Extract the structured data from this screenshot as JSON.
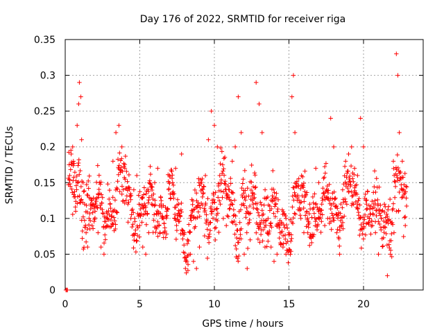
{
  "chart_data": {
    "type": "scatter",
    "title": "Day 176 of 2022, SRMTID for receiver riga",
    "xlabel": "GPS time / hours",
    "ylabel": "SRMTID / TECUs",
    "xlim": [
      0,
      24
    ],
    "ylim": [
      0,
      0.35
    ],
    "xticks": [
      0,
      5,
      10,
      15,
      20
    ],
    "yticks": [
      0,
      0.05,
      0.1,
      0.15,
      0.2,
      0.25,
      0.3,
      0.35
    ],
    "xtick_labels": [
      "0",
      "5",
      "10",
      "15",
      "20"
    ],
    "ytick_labels": [
      "0",
      "0.05",
      "0.1",
      "0.15",
      "0.2",
      "0.25",
      "0.3",
      "0.35"
    ],
    "grid": true,
    "marker": "+",
    "color": "#ff0000",
    "series": [
      {
        "points": [
          [
            0.05,
            0.0
          ],
          [
            0.1,
            0.0
          ],
          [
            0.15,
            0.0
          ],
          [
            0.3,
            0.16
          ],
          [
            0.4,
            0.19
          ],
          [
            0.5,
            0.2
          ],
          [
            0.55,
            0.18
          ],
          [
            0.6,
            0.13
          ],
          [
            0.7,
            0.11
          ],
          [
            0.8,
            0.23
          ],
          [
            0.9,
            0.26
          ],
          [
            0.95,
            0.29
          ],
          [
            1.05,
            0.27
          ],
          [
            1.1,
            0.21
          ],
          [
            1.2,
            0.15
          ],
          [
            1.3,
            0.12
          ],
          [
            1.4,
            0.08
          ],
          [
            1.5,
            0.06
          ],
          [
            1.6,
            0.1
          ],
          [
            1.7,
            0.12
          ],
          [
            1.8,
            0.09
          ],
          [
            2.0,
            0.11
          ],
          [
            2.2,
            0.08
          ],
          [
            2.4,
            0.06
          ],
          [
            2.6,
            0.05
          ],
          [
            2.8,
            0.09
          ],
          [
            3.0,
            0.12
          ],
          [
            3.2,
            0.18
          ],
          [
            3.4,
            0.22
          ],
          [
            3.6,
            0.23
          ],
          [
            3.8,
            0.2
          ],
          [
            4.0,
            0.17
          ],
          [
            4.2,
            0.12
          ],
          [
            4.4,
            0.1
          ],
          [
            4.6,
            0.14
          ],
          [
            4.8,
            0.16
          ],
          [
            5.0,
            0.09
          ],
          [
            5.2,
            0.06
          ],
          [
            5.4,
            0.05
          ],
          [
            5.6,
            0.08
          ],
          [
            5.8,
            0.12
          ],
          [
            6.0,
            0.15
          ],
          [
            6.2,
            0.17
          ],
          [
            6.4,
            0.13
          ],
          [
            6.6,
            0.1
          ],
          [
            6.8,
            0.11
          ],
          [
            7.0,
            0.16
          ],
          [
            7.2,
            0.15
          ],
          [
            7.4,
            0.17
          ],
          [
            7.6,
            0.12
          ],
          [
            7.8,
            0.19
          ],
          [
            8.0,
            0.08
          ],
          [
            8.2,
            0.07
          ],
          [
            8.4,
            0.05
          ],
          [
            8.6,
            0.04
          ],
          [
            8.8,
            0.03
          ],
          [
            9.0,
            0.06
          ],
          [
            9.2,
            0.13
          ],
          [
            9.4,
            0.16
          ],
          [
            9.6,
            0.21
          ],
          [
            9.8,
            0.25
          ],
          [
            10.0,
            0.23
          ],
          [
            10.2,
            0.2
          ],
          [
            10.4,
            0.12
          ],
          [
            10.6,
            0.1
          ],
          [
            10.8,
            0.09
          ],
          [
            11.0,
            0.14
          ],
          [
            11.2,
            0.18
          ],
          [
            11.4,
            0.2
          ],
          [
            11.6,
            0.27
          ],
          [
            11.8,
            0.22
          ],
          [
            12.0,
            0.05
          ],
          [
            12.2,
            0.03
          ],
          [
            12.4,
            0.07
          ],
          [
            12.6,
            0.12
          ],
          [
            12.8,
            0.29
          ],
          [
            13.0,
            0.26
          ],
          [
            13.2,
            0.22
          ],
          [
            13.4,
            0.14
          ],
          [
            13.6,
            0.1
          ],
          [
            13.8,
            0.06
          ],
          [
            14.0,
            0.04
          ],
          [
            14.2,
            0.05
          ],
          [
            14.4,
            0.08
          ],
          [
            14.6,
            0.06
          ],
          [
            14.8,
            0.05
          ],
          [
            15.0,
            0.08
          ],
          [
            15.2,
            0.27
          ],
          [
            15.3,
            0.3
          ],
          [
            15.4,
            0.22
          ],
          [
            15.6,
            0.13
          ],
          [
            15.8,
            0.1
          ],
          [
            16.0,
            0.08
          ],
          [
            16.2,
            0.11
          ],
          [
            16.4,
            0.12
          ],
          [
            16.6,
            0.13
          ],
          [
            16.8,
            0.17
          ],
          [
            17.0,
            0.15
          ],
          [
            17.2,
            0.12
          ],
          [
            17.4,
            0.09
          ],
          [
            17.6,
            0.1
          ],
          [
            17.8,
            0.24
          ],
          [
            18.0,
            0.2
          ],
          [
            18.2,
            0.08
          ],
          [
            18.4,
            0.05
          ],
          [
            18.6,
            0.14
          ],
          [
            18.8,
            0.18
          ],
          [
            19.0,
            0.19
          ],
          [
            19.2,
            0.2
          ],
          [
            19.4,
            0.17
          ],
          [
            19.6,
            0.16
          ],
          [
            19.8,
            0.24
          ],
          [
            20.0,
            0.2
          ],
          [
            20.2,
            0.12
          ],
          [
            20.4,
            0.1
          ],
          [
            20.6,
            0.09
          ],
          [
            20.8,
            0.08
          ],
          [
            21.0,
            0.05
          ],
          [
            21.2,
            0.1
          ],
          [
            21.4,
            0.12
          ],
          [
            21.6,
            0.02
          ],
          [
            21.8,
            0.05
          ],
          [
            22.0,
            0.18
          ],
          [
            22.2,
            0.33
          ],
          [
            22.3,
            0.3
          ],
          [
            22.4,
            0.22
          ],
          [
            22.6,
            0.18
          ],
          [
            22.7,
            0.14
          ],
          [
            22.8,
            0.09
          ]
        ]
      }
    ],
    "point_cloud": {
      "seed": 176,
      "description_free": true,
      "x_start": 0.2,
      "x_end": 22.9,
      "x_step": 0.02,
      "envelope_hours": [
        0,
        1,
        2,
        3,
        4,
        5,
        6,
        7,
        8,
        9,
        10,
        11,
        12,
        13,
        14,
        15,
        16,
        17,
        18,
        19,
        20,
        21,
        22,
        23
      ],
      "envelope_center": [
        0.13,
        0.14,
        0.1,
        0.12,
        0.14,
        0.1,
        0.12,
        0.12,
        0.08,
        0.1,
        0.13,
        0.13,
        0.1,
        0.12,
        0.09,
        0.1,
        0.12,
        0.11,
        0.12,
        0.13,
        0.12,
        0.09,
        0.13,
        0.11
      ],
      "envelope_spread": [
        0.05,
        0.06,
        0.04,
        0.05,
        0.05,
        0.04,
        0.04,
        0.04,
        0.04,
        0.06,
        0.05,
        0.05,
        0.06,
        0.05,
        0.04,
        0.04,
        0.04,
        0.04,
        0.05,
        0.05,
        0.04,
        0.05,
        0.07,
        0.04
      ]
    }
  }
}
